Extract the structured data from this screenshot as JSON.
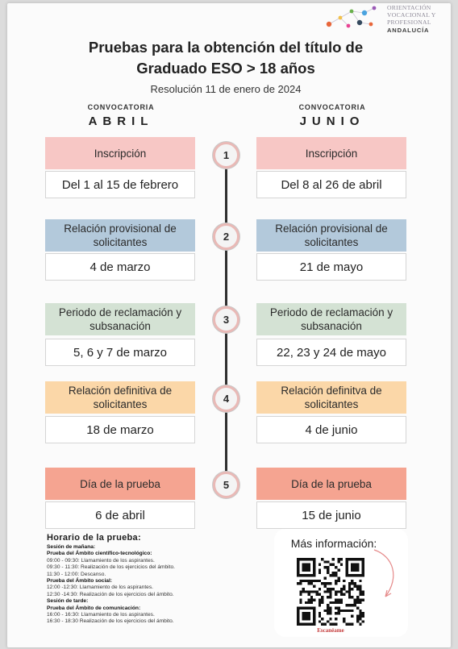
{
  "logo": {
    "lines": [
      "ORIENTACIÓN",
      "VOCACIONAL Y",
      "PROFESIONAL"
    ],
    "region": "ANDALUCÍA",
    "dot_colors": [
      "#e8663a",
      "#f2c14b",
      "#6ab04c",
      "#4aa3df",
      "#9b59b6",
      "#e84393",
      "#34495e"
    ]
  },
  "header": {
    "title_line1": "Pruebas para la obtención del título de",
    "title_line2": "Graduado ESO > 18 años",
    "subtitle": "Resolución 11 de enero de 2024"
  },
  "columns": {
    "left": {
      "label": "CONVOCATORIA",
      "month": "ABRIL"
    },
    "right": {
      "label": "CONVOCATORIA",
      "month": "JUNIO"
    }
  },
  "stages": [
    {
      "number": "1",
      "left_title": "Inscripción",
      "right_title": "Inscripción",
      "left_date": "Del 1 al 15 de febrero",
      "right_date": "Del 8 al 26 de abril",
      "color": "#f7c7c5"
    },
    {
      "number": "2",
      "left_title": "Relación provisional de solicitantes",
      "right_title": "Relación provisional de solicitantes",
      "left_date": "4 de marzo",
      "right_date": "21 de mayo",
      "color": "#b3c9db"
    },
    {
      "number": "3",
      "left_title": "Periodo de reclamación y subsanación",
      "right_title": "Periodo de reclamación y subsanación",
      "left_date": "5, 6 y 7 de marzo",
      "right_date": "22, 23 y 24 de mayo",
      "color": "#d4e2d4"
    },
    {
      "number": "4",
      "left_title": "Relación definitiva de solicitantes",
      "right_title": "Relación definitva de solicitantes",
      "left_date": "18 de marzo",
      "right_date": "4 de junio",
      "color": "#fbd7a8"
    },
    {
      "number": "5",
      "left_title": "Día de la prueba",
      "right_title": "Día de la prueba",
      "left_date": "6 de abril",
      "right_date": "15 de junio",
      "color": "#f5a491"
    }
  ],
  "schedule": {
    "title": "Horario de la prueba:",
    "lines": [
      {
        "text": "Sesión de mañana:",
        "bold": true
      },
      {
        "text": "Prueba del Ámbito científico-tecnológico:",
        "bold": true
      },
      {
        "text": "09:00 - 09:30: Llamamiento de los aspirantes.",
        "bold": false
      },
      {
        "text": "09:30 - 11:30: Realización de los ejercicios del ámbito.",
        "bold": false
      },
      {
        "text": "11:30 - 12:00: Descanso.",
        "bold": false
      },
      {
        "text": "Prueba del Ámbito social:",
        "bold": true
      },
      {
        "text": "12:00 -12:30: Llamamiento de los aspirantes.",
        "bold": false
      },
      {
        "text": "12:30 -14:30: Realización de los ejercicios del ámbito.",
        "bold": false
      },
      {
        "text": "Sesión de tarde:",
        "bold": true
      },
      {
        "text": "Prueba del Ámbito de comunicación:",
        "bold": true
      },
      {
        "text": "16:00 - 16:30: Llamamiento de los aspirantes.",
        "bold": false
      },
      {
        "text": "16:30 - 18:30 Realización de los ejercicios del ámbito.",
        "bold": false
      }
    ]
  },
  "more_info": {
    "title": "Más información:",
    "qr_label": "Escanéame"
  }
}
